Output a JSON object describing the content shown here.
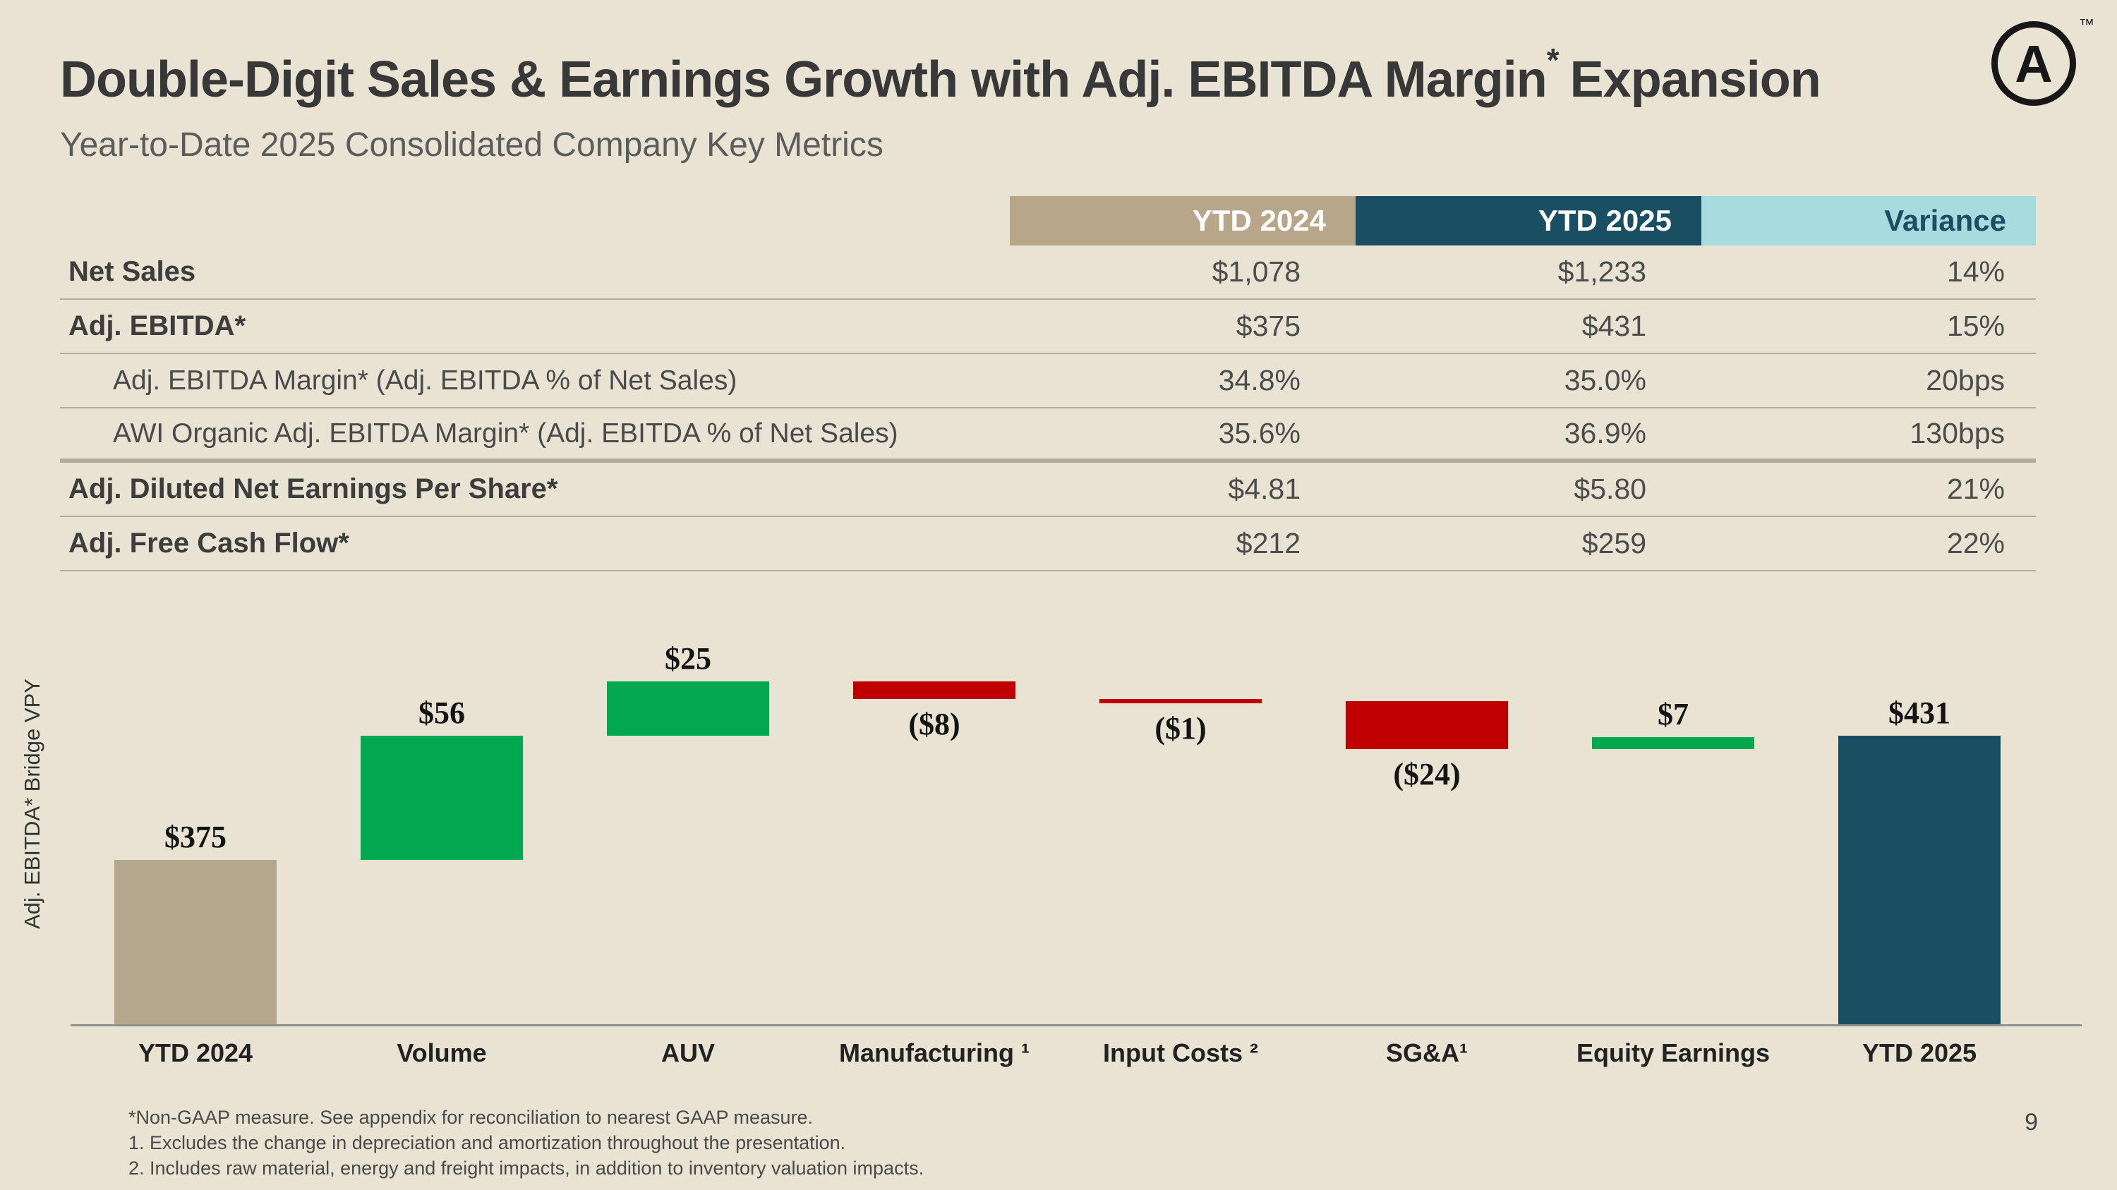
{
  "slide": {
    "title_main": "Double-Digit Sales & Earnings Growth with Adj. EBITDA Margin",
    "title_sup": "*",
    "title_tail": "Expansion",
    "subtitle": "Year-to-Date 2025 Consolidated Company Key Metrics",
    "logo_letter": "A",
    "logo_tm": "™",
    "page_number": "9"
  },
  "colors": {
    "background": "#E9E3D4",
    "tan": "#B7A689",
    "dark_teal": "#1A4F63",
    "light_cyan": "#A7DBDF",
    "green": "#00A94F",
    "red": "#C00000",
    "separator": "#B3AB9A"
  },
  "table": {
    "columns": [
      "YTD 2024",
      "YTD 2025",
      "Variance"
    ],
    "rows": [
      {
        "label": "Net Sales",
        "ytd2024": "$1,078",
        "ytd2025": "$1,233",
        "variance": "14%"
      },
      {
        "label": "Adj. EBITDA*",
        "ytd2024": "$375",
        "ytd2025": "$431",
        "variance": "15%"
      },
      {
        "label": "Adj. EBITDA Margin* (Adj. EBITDA % of Net Sales)",
        "ytd2024": "34.8%",
        "ytd2025": "35.0%",
        "variance": "20bps"
      },
      {
        "label": "AWI Organic Adj. EBITDA Margin* (Adj. EBITDA % of Net Sales)",
        "ytd2024": "35.6%",
        "ytd2025": "36.9%",
        "variance": "130bps"
      },
      {
        "label": "Adj. Diluted Net Earnings Per Share*",
        "ytd2024": "$4.81",
        "ytd2025": "$5.80",
        "variance": "21%"
      },
      {
        "label": "Adj. Free Cash Flow*",
        "ytd2024": "$212",
        "ytd2025": "$259",
        "variance": "22%"
      }
    ]
  },
  "chart_data": {
    "type": "bar",
    "subtype": "waterfall",
    "axis_label": "Adj. EBITDA* Bridge VPY",
    "categories": [
      "YTD 2024",
      "Volume",
      "AUV",
      "Manufacturing ¹",
      "Input Costs ²",
      "SG&A¹",
      "Equity Earnings",
      "YTD 2025"
    ],
    "values": [
      375,
      56,
      25,
      -8,
      -1,
      -24,
      7,
      431
    ],
    "labels": [
      "$375",
      "$56",
      "$25",
      "($8)",
      "($1)",
      "($24)",
      "$7",
      "$431"
    ],
    "bar_types": [
      "total",
      "delta",
      "delta",
      "delta",
      "delta",
      "delta",
      "delta",
      "total"
    ],
    "baseline": 0,
    "grid": false,
    "legend": false,
    "colors": {
      "total_start": "#B5A78C",
      "increase": "#00A94F",
      "decrease": "#C00000",
      "total_end": "#1A4F63"
    }
  },
  "footnotes": [
    "*Non-GAAP measure. See appendix for reconciliation to nearest GAAP measure.",
    "1.  Excludes the change in depreciation and amortization throughout the presentation.",
    "2.  Includes raw material, energy and freight impacts, in addition to inventory valuation impacts."
  ]
}
